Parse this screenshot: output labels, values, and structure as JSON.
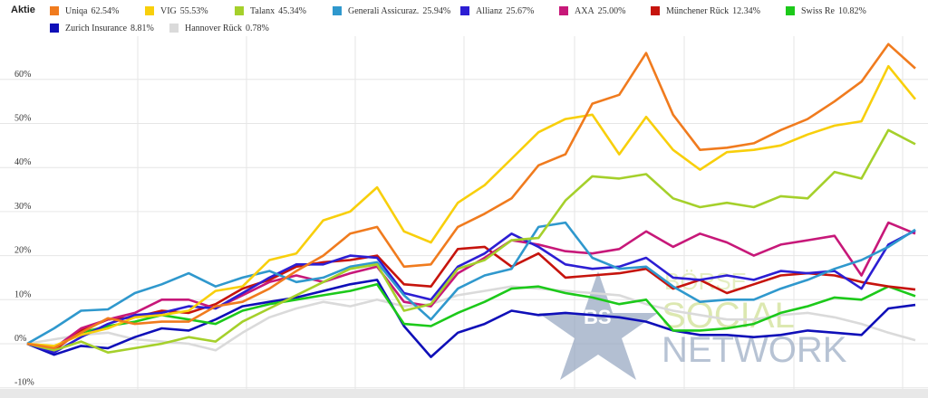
{
  "legend": {
    "title": "Aktie"
  },
  "colors": {
    "grid": "#e6e6e6",
    "axis_text": "#333333",
    "bottom_bar": "#e8e8e8",
    "watermark_star": "#8fa2bd",
    "watermark_text_green": "#c9dc84",
    "watermark_text_blue": "#8fa2bd"
  },
  "watermark": {
    "badge": "BS",
    "line1": "BÖRSE",
    "line2": "SOCIAL",
    "line3": "NETWORK"
  },
  "chart_data": {
    "type": "line",
    "title": "",
    "xlabel": "",
    "ylabel": "",
    "ylim": [
      -10,
      70
    ],
    "y_ticks": [
      -10,
      0,
      10,
      20,
      30,
      40,
      50,
      60
    ],
    "y_tick_labels": [
      "-10%",
      "0%",
      "10%",
      "20%",
      "30%",
      "40%",
      "50%",
      "60%"
    ],
    "grid": true,
    "legend_position": "top",
    "x_count": 34,
    "series": [
      {
        "name": "Uniqa",
        "label": "62.54%",
        "color": "#f07b1e",
        "values": [
          0,
          -1,
          2.5,
          5.8,
          4.5,
          5.0,
          5.0,
          8.5,
          9.5,
          12.5,
          16.5,
          20.0,
          25.0,
          26.5,
          17.5,
          18.0,
          26.5,
          29.5,
          33.0,
          40.5,
          43.0,
          54.5,
          56.5,
          66.0,
          52.0,
          44.0,
          44.5,
          45.5,
          48.5,
          51.0,
          55.0,
          59.5,
          68.0,
          62.5
        ]
      },
      {
        "name": "VIG",
        "label": "55.53%",
        "color": "#f8cf0b",
        "values": [
          0,
          -0.5,
          2.0,
          3.5,
          6.0,
          6.5,
          7.5,
          12.0,
          13.0,
          19.0,
          20.5,
          28.0,
          30.0,
          35.5,
          25.5,
          23.0,
          32.0,
          36.0,
          42.0,
          48.0,
          51.0,
          52.0,
          43.0,
          51.5,
          44.0,
          39.5,
          43.5,
          44.0,
          45.0,
          47.5,
          49.5,
          50.5,
          63.0,
          55.5
        ]
      },
      {
        "name": "Talanx",
        "label": "45.34%",
        "color": "#a5d02b",
        "values": [
          0,
          -1.5,
          0.5,
          -2.0,
          -1.0,
          0,
          1.5,
          0.5,
          5.0,
          8.0,
          11.0,
          14.0,
          17.0,
          18.0,
          7.5,
          9.0,
          17.0,
          19.0,
          23.5,
          24.0,
          32.5,
          38.0,
          37.5,
          38.5,
          33.0,
          31.0,
          32.0,
          31.0,
          33.5,
          33.0,
          39.0,
          37.5,
          48.5,
          45.3
        ]
      },
      {
        "name": "Generali Assicuraz.",
        "label": "25.94%",
        "color": "#2f98cd",
        "values": [
          0,
          3.5,
          7.5,
          7.8,
          11.5,
          13.5,
          16.0,
          13.0,
          15.0,
          16.5,
          14.0,
          15.0,
          17.5,
          18.5,
          11.0,
          5.5,
          12.5,
          15.5,
          17.0,
          26.5,
          27.5,
          19.5,
          17.0,
          17.5,
          13.0,
          9.5,
          10.0,
          10.0,
          12.5,
          14.5,
          17.0,
          19.0,
          22.0,
          25.9
        ]
      },
      {
        "name": "Allianz",
        "label": "25.67%",
        "color": "#2c1ed3",
        "values": [
          0,
          -2.0,
          1.5,
          4.5,
          6.5,
          7.0,
          8.5,
          8.0,
          11.5,
          15.0,
          18.0,
          18.0,
          20.0,
          19.5,
          11.5,
          10.0,
          17.5,
          20.5,
          25.0,
          22.0,
          18.0,
          17.0,
          17.5,
          19.5,
          15.0,
          14.5,
          15.5,
          14.5,
          16.5,
          16.0,
          16.5,
          12.5,
          22.5,
          25.7
        ]
      },
      {
        "name": "AXA",
        "label": "25.00%",
        "color": "#c71879",
        "values": [
          0,
          -1.0,
          3.5,
          5.5,
          7.0,
          10.0,
          10.0,
          8.0,
          11.0,
          14.0,
          15.5,
          14.0,
          16.0,
          17.5,
          9.5,
          8.5,
          16.0,
          19.5,
          23.5,
          22.5,
          21.0,
          20.5,
          21.5,
          25.5,
          22.0,
          25.0,
          23.0,
          20.0,
          22.5,
          23.5,
          24.5,
          15.5,
          27.5,
          25.0
        ]
      },
      {
        "name": "Münchener Rück",
        "label": "12.34%",
        "color": "#c6140d",
        "values": [
          0,
          -1.5,
          3.0,
          5.5,
          6.0,
          7.5,
          7.0,
          9.0,
          12.5,
          14.5,
          17.5,
          18.5,
          19.0,
          20.0,
          13.5,
          13.0,
          21.5,
          22.0,
          17.5,
          20.5,
          15.0,
          15.5,
          16.0,
          17.0,
          12.5,
          14.5,
          11.5,
          13.5,
          15.5,
          16.0,
          15.5,
          14.0,
          13.0,
          12.3
        ]
      },
      {
        "name": "Swiss Re",
        "label": "10.82%",
        "color": "#1cc91a",
        "values": [
          0,
          -1.0,
          2.5,
          4.0,
          5.0,
          6.5,
          5.5,
          4.5,
          7.5,
          9.0,
          10.0,
          11.0,
          12.0,
          13.5,
          4.5,
          4.0,
          7.0,
          9.5,
          12.5,
          13.0,
          11.5,
          10.5,
          9.0,
          10.0,
          3.0,
          3.0,
          3.5,
          4.5,
          7.0,
          8.5,
          10.5,
          10.0,
          13.0,
          10.8
        ]
      },
      {
        "name": "Zurich Insurance",
        "label": "8.81%",
        "color": "#0f0fb8",
        "values": [
          0,
          -2.5,
          -0.5,
          -1.0,
          1.5,
          3.5,
          3.0,
          5.5,
          8.5,
          9.5,
          10.5,
          12.0,
          13.5,
          14.5,
          4.0,
          -3.0,
          2.5,
          4.5,
          7.5,
          6.5,
          7.0,
          6.5,
          6.0,
          5.0,
          3.0,
          2.0,
          2.0,
          1.5,
          2.0,
          3.0,
          2.5,
          2.0,
          8.0,
          8.8
        ]
      },
      {
        "name": "Hannover Rück",
        "label": "0.78%",
        "color": "#dadada",
        "values": [
          0,
          1.0,
          2.0,
          2.5,
          1.0,
          0.5,
          0,
          -1.5,
          2.5,
          6.0,
          8.0,
          9.5,
          8.5,
          10.0,
          8.5,
          9.0,
          11.0,
          12.0,
          13.0,
          12.5,
          12.0,
          11.5,
          11.0,
          9.0,
          7.5,
          6.5,
          5.5,
          5.5,
          6.5,
          7.0,
          6.0,
          4.5,
          2.5,
          0.8
        ]
      }
    ]
  }
}
